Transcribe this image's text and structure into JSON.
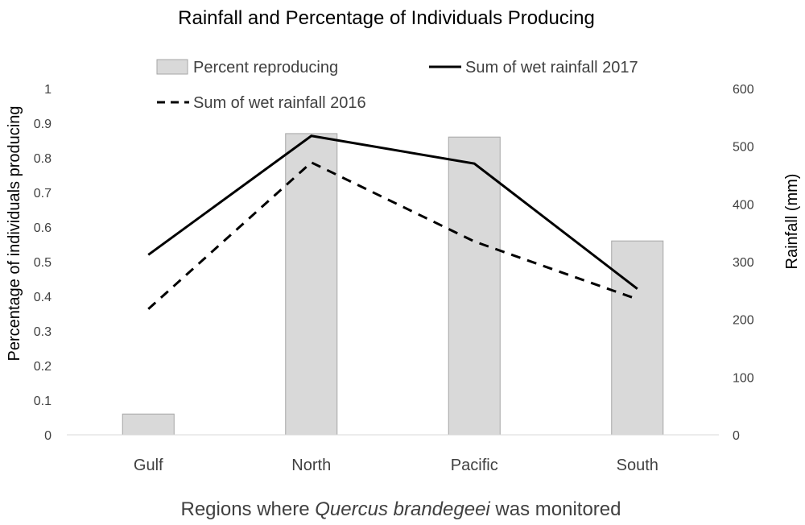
{
  "chart_data": {
    "type": "bar+line",
    "title": "Rainfall and Percentage of Individuals Producing",
    "xlabel_parts": [
      "Regions where ",
      "Quercus brandegeei",
      " was monitored"
    ],
    "ylabel_left": "Percentage of individuals producing",
    "ylabel_right": "Rainfall (mm)",
    "categories": [
      "Gulf",
      "North",
      "Pacific",
      "South"
    ],
    "ylim_left": [
      0,
      1
    ],
    "yticks_left": [
      "0",
      "0.1",
      "0.2",
      "0.3",
      "0.4",
      "0.5",
      "0.6",
      "0.7",
      "0.8",
      "0.9",
      "1"
    ],
    "ylim_right": [
      0,
      600
    ],
    "yticks_right": [
      "0",
      "100",
      "200",
      "300",
      "400",
      "500",
      "600"
    ],
    "grid": false,
    "series": [
      {
        "name": "Percent reproducing",
        "type": "bar",
        "axis": "left",
        "color": "#d9d9d9",
        "values": [
          0.06,
          0.87,
          0.86,
          0.56
        ]
      },
      {
        "name": "Sum of wet rainfall 2017",
        "type": "line",
        "axis": "right",
        "style": "solid",
        "color": "#000000",
        "values": [
          312,
          518,
          470,
          253
        ]
      },
      {
        "name": "Sum of wet rainfall 2016",
        "type": "line",
        "axis": "right",
        "style": "dashed",
        "color": "#000000",
        "values": [
          218,
          472,
          335,
          235
        ]
      }
    ],
    "legend_placement": "top"
  }
}
